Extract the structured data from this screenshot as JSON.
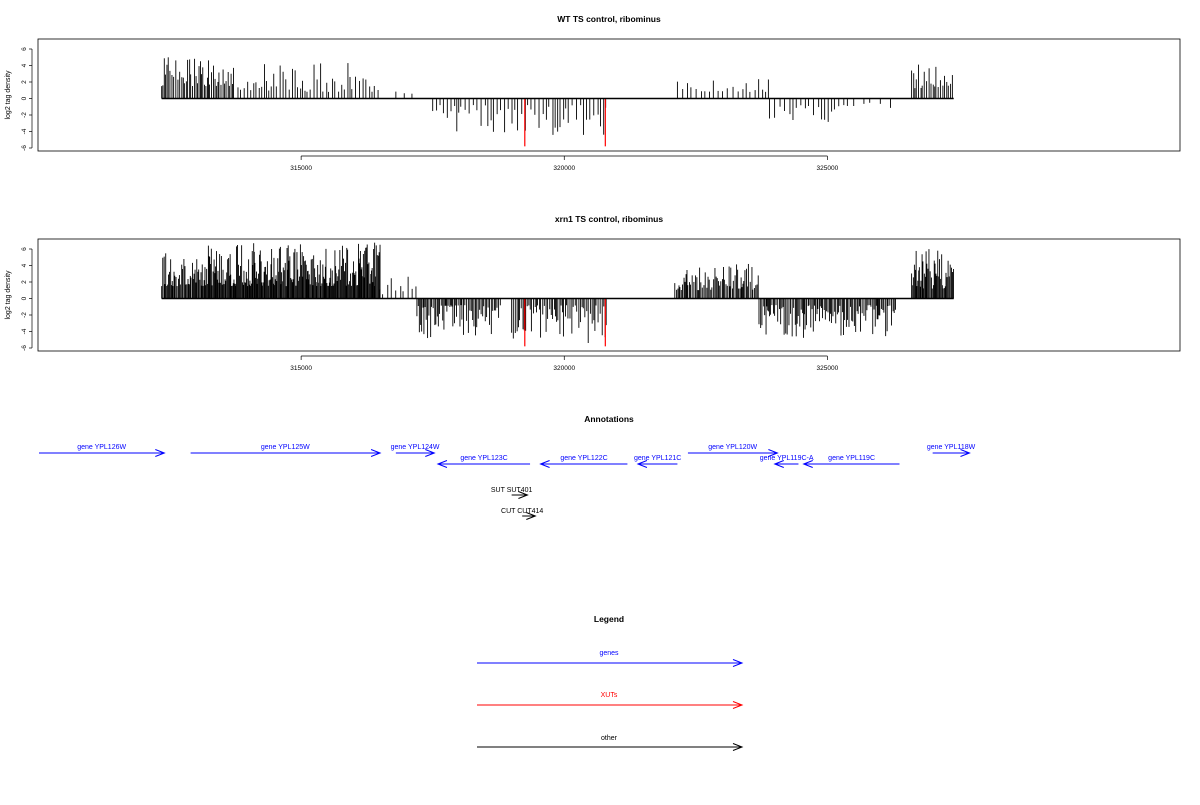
{
  "colors": {
    "gene": "#0000ff",
    "xut": "#ff0000",
    "other": "#000000",
    "bars": "#000000"
  },
  "chart_data": [
    {
      "type": "bar",
      "title": "WT TS control, ribominus",
      "ylabel": "log2 tag density",
      "xlim": [
        310000,
        331700
      ],
      "ylim": [
        -6,
        7
      ],
      "yticks": [
        6,
        4,
        2,
        0,
        -2,
        -4,
        -6
      ],
      "ytick_labels": [
        "6",
        "4",
        "2",
        "0",
        "-2",
        "-4",
        "-6"
      ],
      "xticks": [
        315000,
        320000,
        325000
      ],
      "xtick_labels": [
        "315000",
        "320000",
        "325000"
      ],
      "segments": [
        {
          "from": 312350,
          "to": 313750,
          "min": 1.5,
          "max": 5.1,
          "sign": 1,
          "step": 30
        },
        {
          "from": 313800,
          "to": 316500,
          "min": 0.8,
          "max": 4.7,
          "sign": 1,
          "step": 55
        },
        {
          "from": 316800,
          "to": 317300,
          "min": 0.5,
          "max": 1.5,
          "sign": 1,
          "step": 200
        },
        {
          "from": 317500,
          "to": 320800,
          "min": 0.8,
          "max": 4.5,
          "sign": -1,
          "step": 60
        },
        {
          "from": 322150,
          "to": 323900,
          "min": 0.8,
          "max": 2.4,
          "sign": 1,
          "step": 80
        },
        {
          "from": 323900,
          "to": 325400,
          "min": 0.8,
          "max": 2.9,
          "sign": -1,
          "step": 80
        },
        {
          "from": 325500,
          "to": 326300,
          "min": 0.5,
          "max": 1.2,
          "sign": -1,
          "step": 150
        },
        {
          "from": 326600,
          "to": 327400,
          "min": 1.2,
          "max": 4.2,
          "sign": 1,
          "step": 35
        }
      ],
      "highlights": [
        {
          "x": 319250,
          "value": -5.8,
          "color": "#ff0000"
        },
        {
          "x": 320780,
          "value": -5.8,
          "color": "#ff0000"
        }
      ]
    },
    {
      "type": "bar",
      "title": "xrn1 TS control, ribominus",
      "ylabel": "log2 tag density",
      "xlim": [
        310000,
        331700
      ],
      "ylim": [
        -6,
        7
      ],
      "yticks": [
        6,
        4,
        2,
        0,
        -2,
        -4,
        -6
      ],
      "ytick_labels": [
        "6",
        "4",
        "2",
        "0",
        "-2",
        "-4",
        "-6"
      ],
      "xticks": [
        315000,
        320000,
        325000
      ],
      "xtick_labels": [
        "315000",
        "320000",
        "325000"
      ],
      "segments": [
        {
          "from": 312350,
          "to": 313100,
          "min": 1.5,
          "max": 5.5,
          "sign": 1,
          "step": 20
        },
        {
          "from": 313100,
          "to": 316500,
          "min": 1.5,
          "max": 6.8,
          "sign": 1,
          "step": 15
        },
        {
          "from": 316500,
          "to": 317200,
          "min": 0.5,
          "max": 3.0,
          "sign": 1,
          "step": 70
        },
        {
          "from": 317200,
          "to": 318800,
          "min": 0.8,
          "max": 5.0,
          "sign": -1,
          "step": 25
        },
        {
          "from": 319000,
          "to": 320800,
          "min": 0.8,
          "max": 5.5,
          "sign": -1,
          "step": 30
        },
        {
          "from": 322100,
          "to": 323700,
          "min": 1.0,
          "max": 4.2,
          "sign": 1,
          "step": 25
        },
        {
          "from": 323700,
          "to": 326300,
          "min": 0.8,
          "max": 4.8,
          "sign": -1,
          "step": 25
        },
        {
          "from": 326600,
          "to": 327400,
          "min": 1.2,
          "max": 6.2,
          "sign": 1,
          "step": 18
        }
      ],
      "highlights": [
        {
          "x": 319250,
          "value": -5.8,
          "color": "#ff0000"
        },
        {
          "x": 320780,
          "value": -5.8,
          "color": "#ff0000"
        }
      ]
    }
  ],
  "annotations": {
    "title": "Annotations",
    "xlim": [
      310000,
      331700
    ],
    "features": [
      {
        "label": "gene YPL126W",
        "start": 309950,
        "end": 312400,
        "strand": "+",
        "type": "gene",
        "row": 0
      },
      {
        "label": "gene YPL125W",
        "start": 312900,
        "end": 316500,
        "strand": "+",
        "type": "gene",
        "row": 0
      },
      {
        "label": "gene YPL124W",
        "start": 316800,
        "end": 317530,
        "strand": "+",
        "type": "gene",
        "row": 0
      },
      {
        "label": "gene YPL123C",
        "start": 317600,
        "end": 319350,
        "strand": "-",
        "type": "gene",
        "row": 1
      },
      {
        "label": "gene YPL122C",
        "start": 319550,
        "end": 321200,
        "strand": "-",
        "type": "gene",
        "row": 1
      },
      {
        "label": "gene YPL121C",
        "start": 321400,
        "end": 322150,
        "strand": "-",
        "type": "gene",
        "row": 1
      },
      {
        "label": "gene YPL120W",
        "start": 322350,
        "end": 324050,
        "strand": "+",
        "type": "gene",
        "row": 0
      },
      {
        "label": "gene YPL119C-A",
        "start": 324000,
        "end": 324450,
        "strand": "-",
        "type": "gene",
        "row": 1
      },
      {
        "label": "gene YPL119C",
        "start": 324550,
        "end": 326370,
        "strand": "-",
        "type": "gene",
        "row": 1
      },
      {
        "label": "gene YPL118W",
        "start": 327000,
        "end": 327700,
        "strand": "+",
        "type": "gene",
        "row": 0
      },
      {
        "label": "SUT SUT401",
        "start": 319000,
        "end": 319300,
        "strand": "+",
        "type": "other",
        "row": 2
      },
      {
        "label": "CUT CUT414",
        "start": 319200,
        "end": 319450,
        "strand": "+",
        "type": "other",
        "row": 3
      }
    ]
  },
  "legend": {
    "title": "Legend",
    "items": [
      {
        "label": "genes",
        "type": "gene"
      },
      {
        "label": "XUTs",
        "type": "xut"
      },
      {
        "label": "other",
        "type": "other"
      }
    ]
  }
}
